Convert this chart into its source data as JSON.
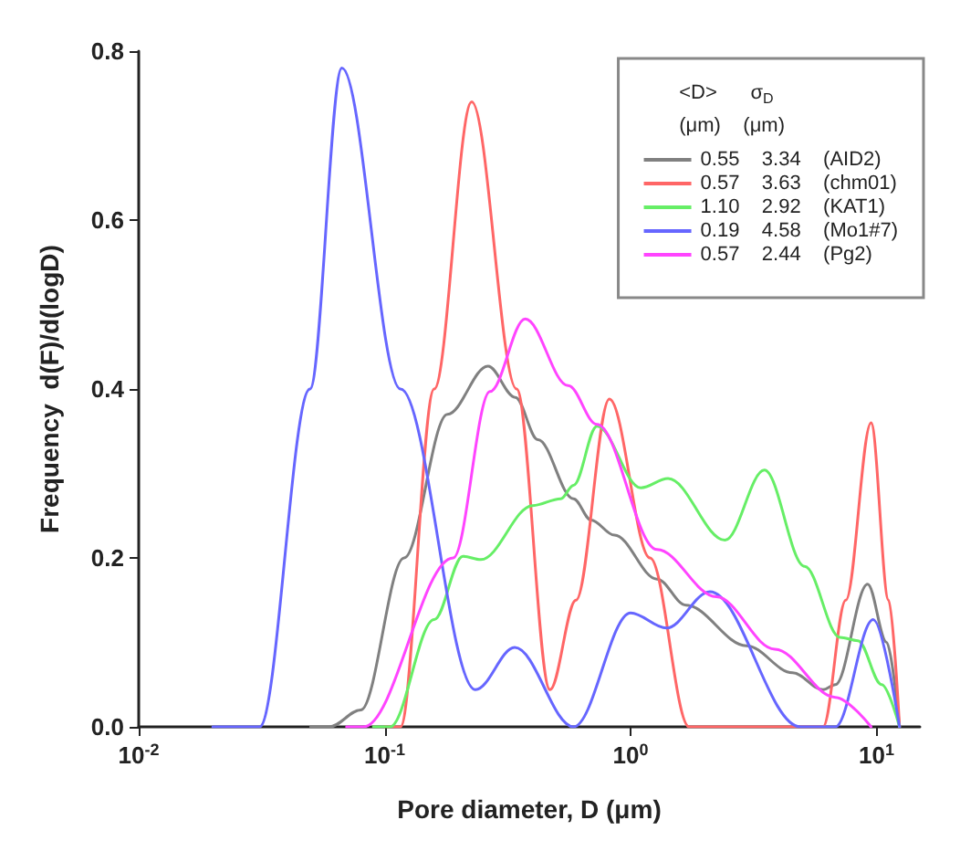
{
  "chart_data": {
    "type": "line",
    "xlabel": "Pore diameter, D (μm)",
    "ylabel": "Frequency  d(F)/d(logD)",
    "legend_title": "<D>      σ$_{D}$\n(μm)    (μm)",
    "log": "x",
    "xlim": [
      0.01,
      15
    ],
    "xticks": [
      {
        "value": 0.01,
        "label": "10$^{-2}$"
      },
      {
        "value": 0.1,
        "label": "10$^{-1}$"
      },
      {
        "value": 1,
        "label": "10$^{0}$"
      },
      {
        "value": 10,
        "label": "10$^{1}$"
      }
    ],
    "ylim": [
      0,
      0.8
    ],
    "yticks": [
      {
        "value": 0,
        "label": "0.0"
      },
      0.2,
      0.4,
      0.6,
      0.8
    ],
    "grid": false,
    "legend": "top right",
    "marker": "none",
    "line_style": "solid",
    "series": [
      {
        "name": "0.55    3.34    (AID2)",
        "color": "#808080",
        "x": [
          0.05,
          0.0596,
          0.08,
          0.12,
          0.18,
          0.263,
          0.34,
          0.42,
          0.586,
          0.69,
          0.86,
          1.28,
          1.68,
          2.96,
          4.56,
          6.06,
          6.8,
          9.2,
          11,
          12.4
        ],
        "values": [
          0,
          0,
          0.02,
          0.2,
          0.37,
          0.427,
          0.39,
          0.34,
          0.27,
          0.245,
          0.227,
          0.175,
          0.144,
          0.096,
          0.064,
          0.044,
          0.05,
          0.169,
          0.1,
          0
        ]
      },
      {
        "name": "0.57    3.63    (chm01)",
        "color": "#ff6666",
        "x": [
          0.1,
          0.116,
          0.159,
          0.226,
          0.344,
          0.47,
          0.6,
          0.82,
          1.2,
          1.73,
          6.06,
          7.5,
          9.5,
          11.2,
          12.4
        ],
        "values": [
          0,
          0,
          0.4,
          0.74,
          0.4,
          0.044,
          0.15,
          0.388,
          0.2,
          0,
          0,
          0.15,
          0.36,
          0.15,
          0
        ]
      },
      {
        "name": "1.10    2.92    (KAT1)",
        "color": "#66ee66",
        "x": [
          0.09,
          0.105,
          0.159,
          0.208,
          0.246,
          0.4,
          0.52,
          0.586,
          0.73,
          1.1,
          1.42,
          2.42,
          3.5,
          5.1,
          7.1,
          8.4,
          10.5,
          12.4
        ],
        "values": [
          0,
          0,
          0.127,
          0.202,
          0.198,
          0.262,
          0.27,
          0.286,
          0.356,
          0.283,
          0.294,
          0.221,
          0.304,
          0.19,
          0.106,
          0.102,
          0.05,
          0
        ]
      },
      {
        "name": "0.19    4.58    (Mo1#7)",
        "color": "#6666ff",
        "x": [
          0.02,
          0.031,
          0.0497,
          0.067,
          0.116,
          0.234,
          0.338,
          0.586,
          1,
          1.4,
          2.1,
          4.9,
          6.8,
          9.7,
          12.4
        ],
        "values": [
          0,
          0,
          0.4,
          0.78,
          0.4,
          0.044,
          0.094,
          0,
          0.135,
          0.117,
          0.16,
          0,
          0,
          0.127,
          0
        ]
      },
      {
        "name": "0.57    2.44    (Pg2)",
        "color": "#ff44ff",
        "x": [
          0.07,
          0.082,
          0.19,
          0.268,
          0.373,
          0.557,
          0.73,
          1.28,
          2.23,
          3.86,
          6.8,
          9.5
        ],
        "values": [
          0,
          0,
          0.2,
          0.397,
          0.483,
          0.404,
          0.358,
          0.21,
          0.154,
          0.092,
          0.035,
          0
        ]
      }
    ]
  }
}
